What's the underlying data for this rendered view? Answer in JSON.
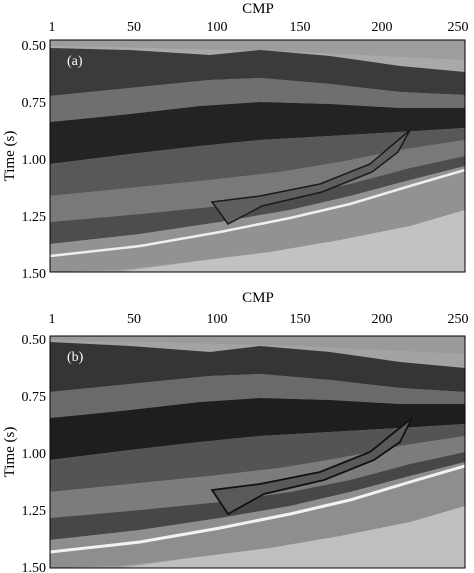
{
  "figure": {
    "panels": [
      {
        "label": "(a)",
        "x_axis_title": "CMP",
        "y_axis_title": "Time (s)",
        "x_ticks": [
          "1",
          "50",
          "100",
          "150",
          "200",
          "250"
        ],
        "y_ticks": [
          "0.50",
          "0.75",
          "1.00",
          "1.25",
          "1.50"
        ]
      },
      {
        "label": "(b)",
        "x_axis_title": "CMP",
        "y_axis_title": "Time (s)",
        "x_ticks": [
          "1",
          "50",
          "100",
          "150",
          "200",
          "250"
        ],
        "y_ticks": [
          "0.50",
          "0.75",
          "1.00",
          "1.25",
          "1.50"
        ]
      }
    ]
  }
}
